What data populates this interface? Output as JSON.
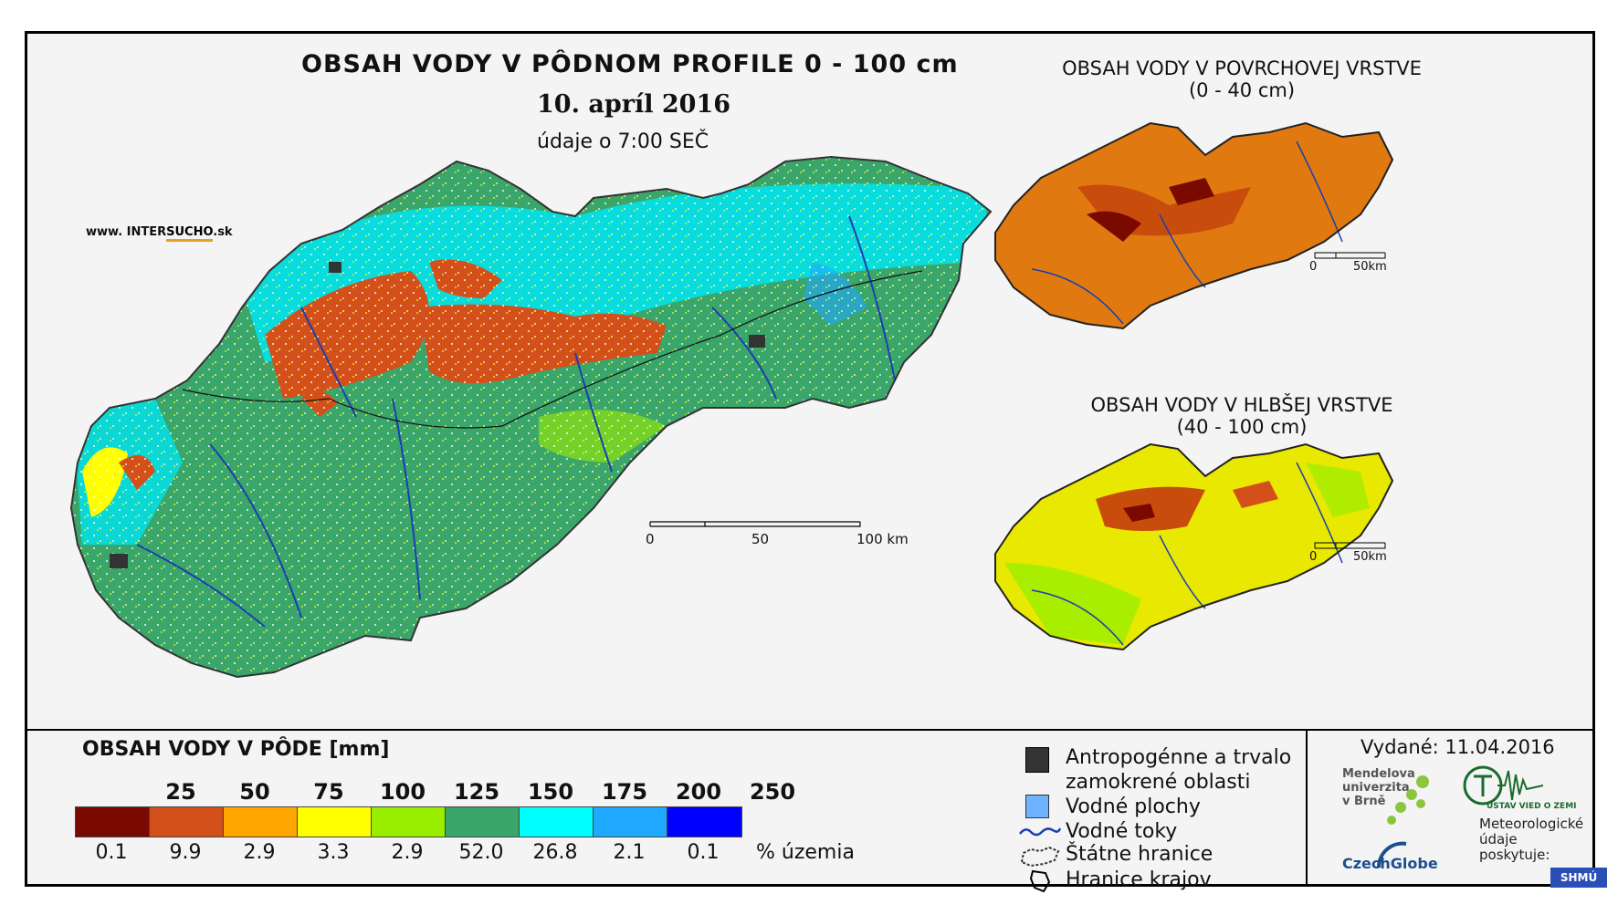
{
  "main": {
    "title": "OBSAH VODY V PÔDNOM PROFILE 0 - 100 cm",
    "date": "10. apríl 2016",
    "time_note": "údaje o 7:00 SEČ",
    "website_prefix": "www. INTER",
    "website_accent": "SUCHO",
    "website_suffix": ".sk",
    "scale_labels": [
      "0",
      "50",
      "100 km"
    ]
  },
  "insets": [
    {
      "title_line1": "OBSAH VODY V POVRCHOVEJ VRSTVE",
      "title_line2": "(0 - 40 cm)",
      "scale_labels": [
        "0",
        "50km"
      ]
    },
    {
      "title_line1": "OBSAH VODY V HLBŠEJ VRSTVE",
      "title_line2": "(40 - 100 cm)",
      "scale_labels": [
        "0",
        "50km"
      ]
    }
  ],
  "legend": {
    "title": "OBSAH VODY V PÔDE [mm]",
    "thresholds": [
      "25",
      "50",
      "75",
      "100",
      "125",
      "150",
      "175",
      "200",
      "250"
    ],
    "colors": [
      "#7a0a00",
      "#d4501a",
      "#ffa500",
      "#ffff00",
      "#99ee00",
      "#3aa66a",
      "#00ffff",
      "#1ea8ff",
      "#0000ff"
    ],
    "percentages": [
      "0.1",
      "9.9",
      "2.9",
      "3.3",
      "2.9",
      "52.0",
      "26.8",
      "2.1",
      "0.1"
    ],
    "percent_label": "% územia"
  },
  "symbols": {
    "anthropogenic_line1": "Antropogénne a trvalo",
    "anthropogenic_line2": "zamokrené oblasti",
    "water_bodies": "Vodné plochy",
    "water_courses": "Vodné toky",
    "state_border": "Štátne hranice",
    "region_border": "Hranice krajov"
  },
  "issued": "Vydané: 11.04.2016",
  "logos": {
    "mendel_line1": "Mendelova",
    "mendel_line2": "univerzita",
    "mendel_line3": "v Brně",
    "czechglobe": "CzechGlobe",
    "uvz": "ÚSTAV VIED O ZEMI",
    "met_line1": "Meteorologické",
    "met_line2": "údaje",
    "met_line3": "poskytuje:",
    "shmu": "SHMÚ"
  }
}
